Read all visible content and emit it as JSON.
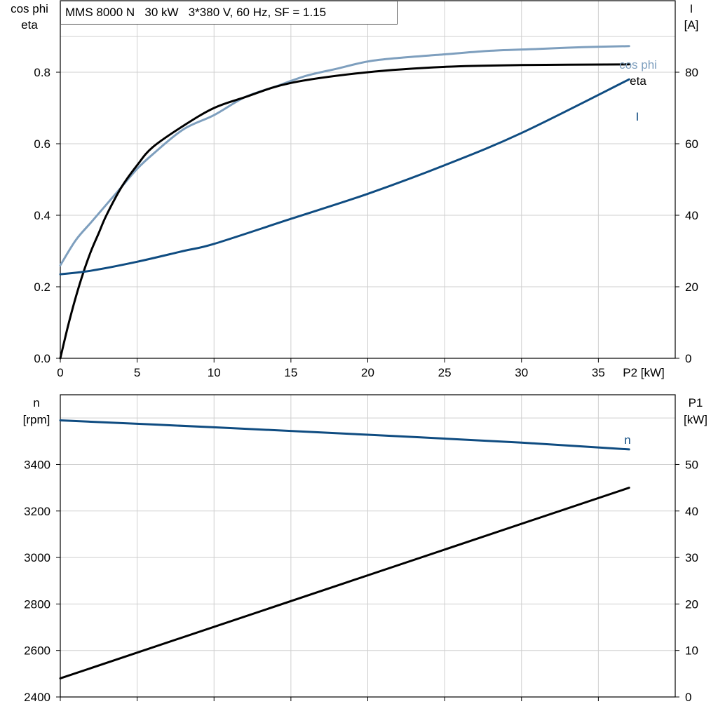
{
  "header": {
    "title": "MMS 8000 N   30 kW   3*380 V, 60 Hz, SF = 1.15"
  },
  "colors": {
    "cosphi": "#7e9fbe",
    "eta": "#000000",
    "current": "#0f4c81",
    "speed": "#0f4c81",
    "p1": "#000000",
    "grid": "#cfcfcf"
  },
  "chart_data": [
    {
      "type": "line",
      "title": "",
      "xlabel": "P2 [kW]",
      "xlim": [
        0,
        40
      ],
      "xticks": [
        0,
        5,
        10,
        15,
        20,
        25,
        30,
        35
      ],
      "y_left": {
        "label_lines": [
          "cos phi",
          "eta"
        ],
        "lim": [
          0,
          1.0
        ],
        "ticks": [
          0.0,
          0.2,
          0.4,
          0.6,
          0.8
        ],
        "tick_labels": [
          "0.0",
          "0.2",
          "0.4",
          "0.6",
          "0.8"
        ]
      },
      "y_right": {
        "label_lines": [
          "I",
          "[A]"
        ],
        "lim": [
          0,
          100
        ],
        "ticks": [
          0,
          20,
          40,
          60,
          80
        ],
        "tick_labels": [
          "0",
          "20",
          "40",
          "60",
          "80"
        ]
      },
      "series": [
        {
          "name": "cos phi",
          "axis": "left",
          "x": [
            0,
            1,
            2,
            3,
            4,
            5,
            6,
            8,
            10,
            12,
            14,
            16,
            18,
            20,
            22,
            25,
            28,
            31,
            34,
            37
          ],
          "y": [
            0.26,
            0.33,
            0.38,
            0.43,
            0.48,
            0.53,
            0.57,
            0.64,
            0.68,
            0.73,
            0.76,
            0.79,
            0.81,
            0.83,
            0.84,
            0.85,
            0.86,
            0.865,
            0.87,
            0.873
          ]
        },
        {
          "name": "eta",
          "axis": "left",
          "x": [
            0,
            0.5,
            1,
            1.5,
            2,
            2.5,
            3,
            4,
            5,
            6,
            8,
            10,
            12,
            15,
            20,
            25,
            30,
            37
          ],
          "y": [
            0.0,
            0.09,
            0.17,
            0.24,
            0.3,
            0.35,
            0.4,
            0.48,
            0.54,
            0.59,
            0.65,
            0.7,
            0.73,
            0.77,
            0.8,
            0.815,
            0.82,
            0.822
          ]
        },
        {
          "name": "I",
          "axis": "right",
          "x": [
            0,
            2,
            5,
            8,
            10,
            15,
            20,
            25,
            30,
            37
          ],
          "y": [
            23.5,
            24.5,
            27,
            30,
            32,
            39,
            46,
            54,
            63,
            78
          ]
        }
      ]
    },
    {
      "type": "line",
      "title": "",
      "xlabel": "",
      "xlim": [
        0,
        40
      ],
      "xticks": [
        0,
        5,
        10,
        15,
        20,
        25,
        30,
        35
      ],
      "y_left": {
        "label_lines": [
          "n",
          "[rpm]"
        ],
        "lim": [
          2400,
          3700
        ],
        "ticks": [
          2400,
          2600,
          2800,
          3000,
          3200,
          3400
        ],
        "tick_labels": [
          "2400",
          "2600",
          "2800",
          "3000",
          "3200",
          "3400"
        ]
      },
      "y_right": {
        "label_lines": [
          "P1",
          "[kW]"
        ],
        "lim": [
          0,
          65
        ],
        "ticks": [
          0,
          10,
          20,
          30,
          40,
          50
        ],
        "tick_labels": [
          "0",
          "10",
          "20",
          "30",
          "40",
          "50"
        ]
      },
      "series": [
        {
          "name": "n",
          "axis": "left",
          "x": [
            0,
            10,
            20,
            30,
            37
          ],
          "y": [
            3590,
            3560,
            3528,
            3494,
            3465
          ]
        },
        {
          "name": "",
          "axis": "right",
          "x": [
            0,
            37
          ],
          "y": [
            4,
            45
          ]
        }
      ]
    }
  ]
}
